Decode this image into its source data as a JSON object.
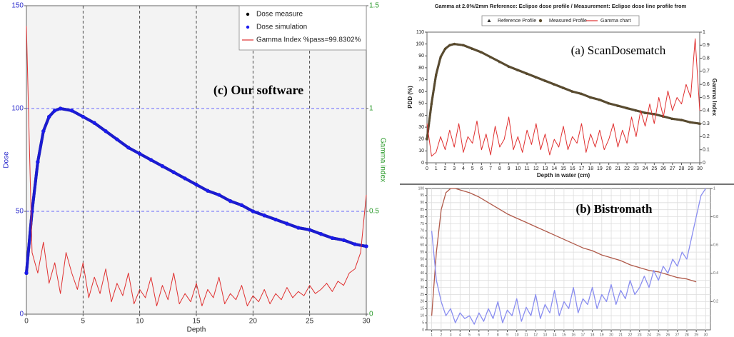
{
  "chart_data": [
    {
      "type": "line",
      "annotation": "(c) Our software",
      "xlabel": "Depth",
      "ylabel": "Dose",
      "y2label": "Gamma index",
      "xlim": [
        0,
        30
      ],
      "ylim": [
        0,
        150
      ],
      "y2lim": [
        0,
        1.5
      ],
      "xticks": [
        0,
        5,
        10,
        15,
        20,
        25,
        30
      ],
      "yticks": [
        0,
        50,
        100,
        150
      ],
      "y2ticks": [
        0,
        0.5,
        1,
        1.5
      ],
      "grid": true,
      "legend": "upper right",
      "series": [
        {
          "name": "Dose measure",
          "color": "#000000",
          "style": "circle",
          "x": [
            0,
            0.5,
            1,
            1.5,
            2,
            2.5,
            3,
            4,
            5,
            6,
            7,
            8,
            9,
            10,
            11,
            12,
            13,
            14,
            15,
            16,
            17,
            18,
            19,
            20,
            21,
            22,
            23,
            24,
            25,
            26,
            27,
            28,
            29,
            30
          ],
          "values": [
            20,
            50,
            74,
            89,
            96,
            99,
            100,
            99,
            96,
            93,
            89,
            85,
            81,
            78,
            75,
            72,
            69,
            66,
            63,
            60,
            58,
            55,
            53,
            50,
            48,
            46,
            44,
            42,
            41,
            39,
            37,
            36,
            34,
            33
          ]
        },
        {
          "name": "Dose simulation",
          "color": "#1a1aee",
          "style": "circle",
          "x": [
            0,
            0.5,
            1,
            1.5,
            2,
            2.5,
            3,
            4,
            5,
            6,
            7,
            8,
            9,
            10,
            11,
            12,
            13,
            14,
            15,
            16,
            17,
            18,
            19,
            20,
            21,
            22,
            23,
            24,
            25,
            26,
            27,
            28,
            29,
            30
          ],
          "values": [
            20,
            50,
            74,
            89,
            96,
            99,
            100,
            99,
            96,
            93,
            89,
            85,
            81,
            78,
            75,
            72,
            69,
            66,
            63,
            60,
            58,
            55,
            53,
            50,
            48,
            46,
            44,
            42,
            41,
            39,
            37,
            36,
            34,
            33
          ]
        },
        {
          "name": "Gamma Index %pass=99.8302%",
          "color": "#e03030",
          "style": "line",
          "axis": "y2",
          "x": [
            0,
            0.5,
            1,
            1.5,
            2,
            2.5,
            3,
            3.5,
            4,
            4.5,
            5,
            5.5,
            6,
            6.5,
            7,
            7.5,
            8,
            8.5,
            9,
            9.5,
            10,
            10.5,
            11,
            11.5,
            12,
            12.5,
            13,
            13.5,
            14,
            14.5,
            15,
            15.5,
            16,
            16.5,
            17,
            17.5,
            18,
            18.5,
            19,
            19.5,
            20,
            20.5,
            21,
            21.5,
            22,
            22.5,
            23,
            23.5,
            24,
            24.5,
            25,
            25.5,
            26,
            26.5,
            27,
            27.5,
            28,
            28.5,
            29,
            29.5,
            30
          ],
          "values": [
            1.4,
            0.3,
            0.2,
            0.35,
            0.15,
            0.25,
            0.1,
            0.3,
            0.2,
            0.12,
            0.25,
            0.08,
            0.18,
            0.1,
            0.22,
            0.06,
            0.15,
            0.09,
            0.2,
            0.05,
            0.12,
            0.08,
            0.18,
            0.04,
            0.14,
            0.07,
            0.2,
            0.05,
            0.1,
            0.06,
            0.15,
            0.04,
            0.12,
            0.08,
            0.18,
            0.05,
            0.1,
            0.07,
            0.14,
            0.04,
            0.09,
            0.06,
            0.12,
            0.05,
            0.1,
            0.07,
            0.13,
            0.08,
            0.11,
            0.09,
            0.14,
            0.1,
            0.12,
            0.15,
            0.11,
            0.16,
            0.14,
            0.2,
            0.22,
            0.3,
            0.58
          ]
        }
      ]
    },
    {
      "type": "line",
      "title": "Gamma at 2.0%/2mm  Reference: Eclipse dose profile  / Measurement: Eclipse dose line profile from",
      "annotation": "(a) ScanDosematch",
      "xlabel": "Depth in water (cm)",
      "ylabel": "PDD (%)",
      "y2label": "Gamma Index",
      "xlim": [
        0,
        30
      ],
      "ylim": [
        0,
        110
      ],
      "y2lim": [
        0,
        1
      ],
      "xticks": [
        0,
        1,
        2,
        3,
        4,
        5,
        6,
        7,
        8,
        9,
        10,
        11,
        12,
        13,
        14,
        15,
        16,
        17,
        18,
        19,
        20,
        21,
        22,
        23,
        24,
        25,
        26,
        27,
        28,
        29,
        30
      ],
      "yticks": [
        0,
        10,
        20,
        30,
        40,
        50,
        60,
        70,
        80,
        90,
        100,
        110
      ],
      "y2ticks": [
        0,
        0.1,
        0.2,
        0.3,
        0.4,
        0.5,
        0.6,
        0.7,
        0.8,
        0.9,
        1
      ],
      "grid": false,
      "legend": "top",
      "series": [
        {
          "name": "Reference Profile",
          "color": "#333333",
          "style": "triangle",
          "x": [
            0,
            0.5,
            1,
            1.5,
            2,
            2.5,
            3,
            4,
            5,
            6,
            7,
            8,
            9,
            10,
            11,
            12,
            13,
            14,
            15,
            16,
            17,
            18,
            19,
            20,
            21,
            22,
            23,
            24,
            25,
            26,
            27,
            28,
            29,
            30
          ],
          "values": [
            20,
            50,
            74,
            89,
            96,
            99,
            100,
            99,
            96,
            93,
            89,
            85,
            81,
            78,
            75,
            72,
            69,
            66,
            63,
            60,
            58,
            55,
            53,
            50,
            48,
            46,
            44,
            42,
            41,
            39,
            37,
            36,
            34,
            33
          ]
        },
        {
          "name": "Measured Profile",
          "color": "#5a4a2a",
          "style": "circle",
          "x": [
            0,
            0.5,
            1,
            1.5,
            2,
            2.5,
            3,
            4,
            5,
            6,
            7,
            8,
            9,
            10,
            11,
            12,
            13,
            14,
            15,
            16,
            17,
            18,
            19,
            20,
            21,
            22,
            23,
            24,
            25,
            26,
            27,
            28,
            29,
            30
          ],
          "values": [
            20,
            50,
            74,
            89,
            96,
            99,
            100,
            99,
            96,
            93,
            89,
            85,
            81,
            78,
            75,
            72,
            69,
            66,
            63,
            60,
            58,
            55,
            53,
            50,
            48,
            46,
            44,
            42,
            41,
            39,
            37,
            36,
            34,
            33
          ]
        },
        {
          "name": "Gamma chart",
          "color": "#e03030",
          "style": "line",
          "axis": "y2",
          "x": [
            0,
            0.5,
            1,
            1.5,
            2,
            2.5,
            3,
            3.5,
            4,
            4.5,
            5,
            5.5,
            6,
            6.5,
            7,
            7.5,
            8,
            8.5,
            9,
            9.5,
            10,
            10.5,
            11,
            11.5,
            12,
            12.5,
            13,
            13.5,
            14,
            14.5,
            15,
            15.5,
            16,
            16.5,
            17,
            17.5,
            18,
            18.5,
            19,
            19.5,
            20,
            20.5,
            21,
            21.5,
            22,
            22.5,
            23,
            23.5,
            24,
            24.5,
            25,
            25.5,
            26,
            26.5,
            27,
            27.5,
            28,
            28.5,
            29,
            29.5,
            30
          ],
          "values": [
            0.3,
            0.05,
            0.08,
            0.2,
            0.1,
            0.25,
            0.12,
            0.3,
            0.08,
            0.2,
            0.15,
            0.32,
            0.1,
            0.22,
            0.06,
            0.28,
            0.12,
            0.18,
            0.35,
            0.1,
            0.2,
            0.08,
            0.25,
            0.14,
            0.3,
            0.1,
            0.22,
            0.06,
            0.18,
            0.12,
            0.28,
            0.1,
            0.2,
            0.15,
            0.3,
            0.08,
            0.22,
            0.12,
            0.25,
            0.1,
            0.18,
            0.3,
            0.12,
            0.25,
            0.15,
            0.35,
            0.2,
            0.4,
            0.28,
            0.45,
            0.3,
            0.5,
            0.35,
            0.55,
            0.4,
            0.5,
            0.45,
            0.6,
            0.5,
            0.95,
            0.4
          ]
        }
      ]
    },
    {
      "type": "line",
      "annotation": "(b) Bistromath",
      "xlim": [
        0.5,
        30.5
      ],
      "ylim": [
        0,
        100
      ],
      "y2lim": [
        0,
        1
      ],
      "xticks": [
        1,
        2,
        3,
        4,
        5,
        6,
        7,
        8,
        9,
        10,
        11,
        12,
        13,
        14,
        15,
        16,
        17,
        18,
        19,
        20,
        21,
        22,
        23,
        24,
        25,
        26,
        27,
        28,
        29,
        30
      ],
      "yticks": [
        0,
        5,
        10,
        15,
        20,
        25,
        30,
        35,
        40,
        45,
        50,
        55,
        60,
        65,
        70,
        75,
        80,
        85,
        90,
        95,
        100
      ],
      "y2ticks": [
        0.2,
        0.4,
        0.6,
        0.8,
        1
      ],
      "grid": true,
      "series": [
        {
          "color": "#b05a4a",
          "style": "line",
          "x": [
            1,
            1.5,
            2,
            2.5,
            3,
            3.5,
            4,
            5,
            6,
            7,
            8,
            9,
            10,
            11,
            12,
            13,
            14,
            15,
            16,
            17,
            18,
            19,
            20,
            21,
            22,
            23,
            24,
            25,
            26,
            27,
            28,
            29
          ],
          "values": [
            10,
            55,
            85,
            97,
            100,
            100,
            99,
            97,
            94,
            90,
            86,
            82,
            79,
            76,
            73,
            70,
            67,
            64,
            61,
            58,
            56,
            53,
            51,
            49,
            46,
            44,
            42,
            41,
            39,
            37,
            36,
            34
          ]
        },
        {
          "color": "#8a8ef0",
          "style": "line",
          "axis": "y2",
          "x": [
            1,
            1.5,
            2,
            2.5,
            3,
            3.5,
            4,
            4.5,
            5,
            5.5,
            6,
            6.5,
            7,
            7.5,
            8,
            8.5,
            9,
            9.5,
            10,
            10.5,
            11,
            11.5,
            12,
            12.5,
            13,
            13.5,
            14,
            14.5,
            15,
            15.5,
            16,
            16.5,
            17,
            17.5,
            18,
            18.5,
            19,
            19.5,
            20,
            20.5,
            21,
            21.5,
            22,
            22.5,
            23,
            23.5,
            24,
            24.5,
            25,
            25.5,
            26,
            26.5,
            27,
            27.5,
            28,
            28.5,
            29,
            29.5,
            30
          ],
          "values": [
            0.7,
            0.35,
            0.2,
            0.1,
            0.15,
            0.05,
            0.12,
            0.08,
            0.1,
            0.04,
            0.12,
            0.06,
            0.15,
            0.08,
            0.2,
            0.05,
            0.14,
            0.1,
            0.22,
            0.06,
            0.16,
            0.1,
            0.25,
            0.08,
            0.18,
            0.12,
            0.28,
            0.1,
            0.2,
            0.15,
            0.3,
            0.12,
            0.22,
            0.18,
            0.3,
            0.15,
            0.25,
            0.2,
            0.32,
            0.18,
            0.28,
            0.22,
            0.35,
            0.25,
            0.3,
            0.38,
            0.3,
            0.42,
            0.35,
            0.45,
            0.4,
            0.5,
            0.45,
            0.55,
            0.5,
            0.65,
            0.8,
            0.95,
            1.0
          ]
        }
      ]
    }
  ]
}
